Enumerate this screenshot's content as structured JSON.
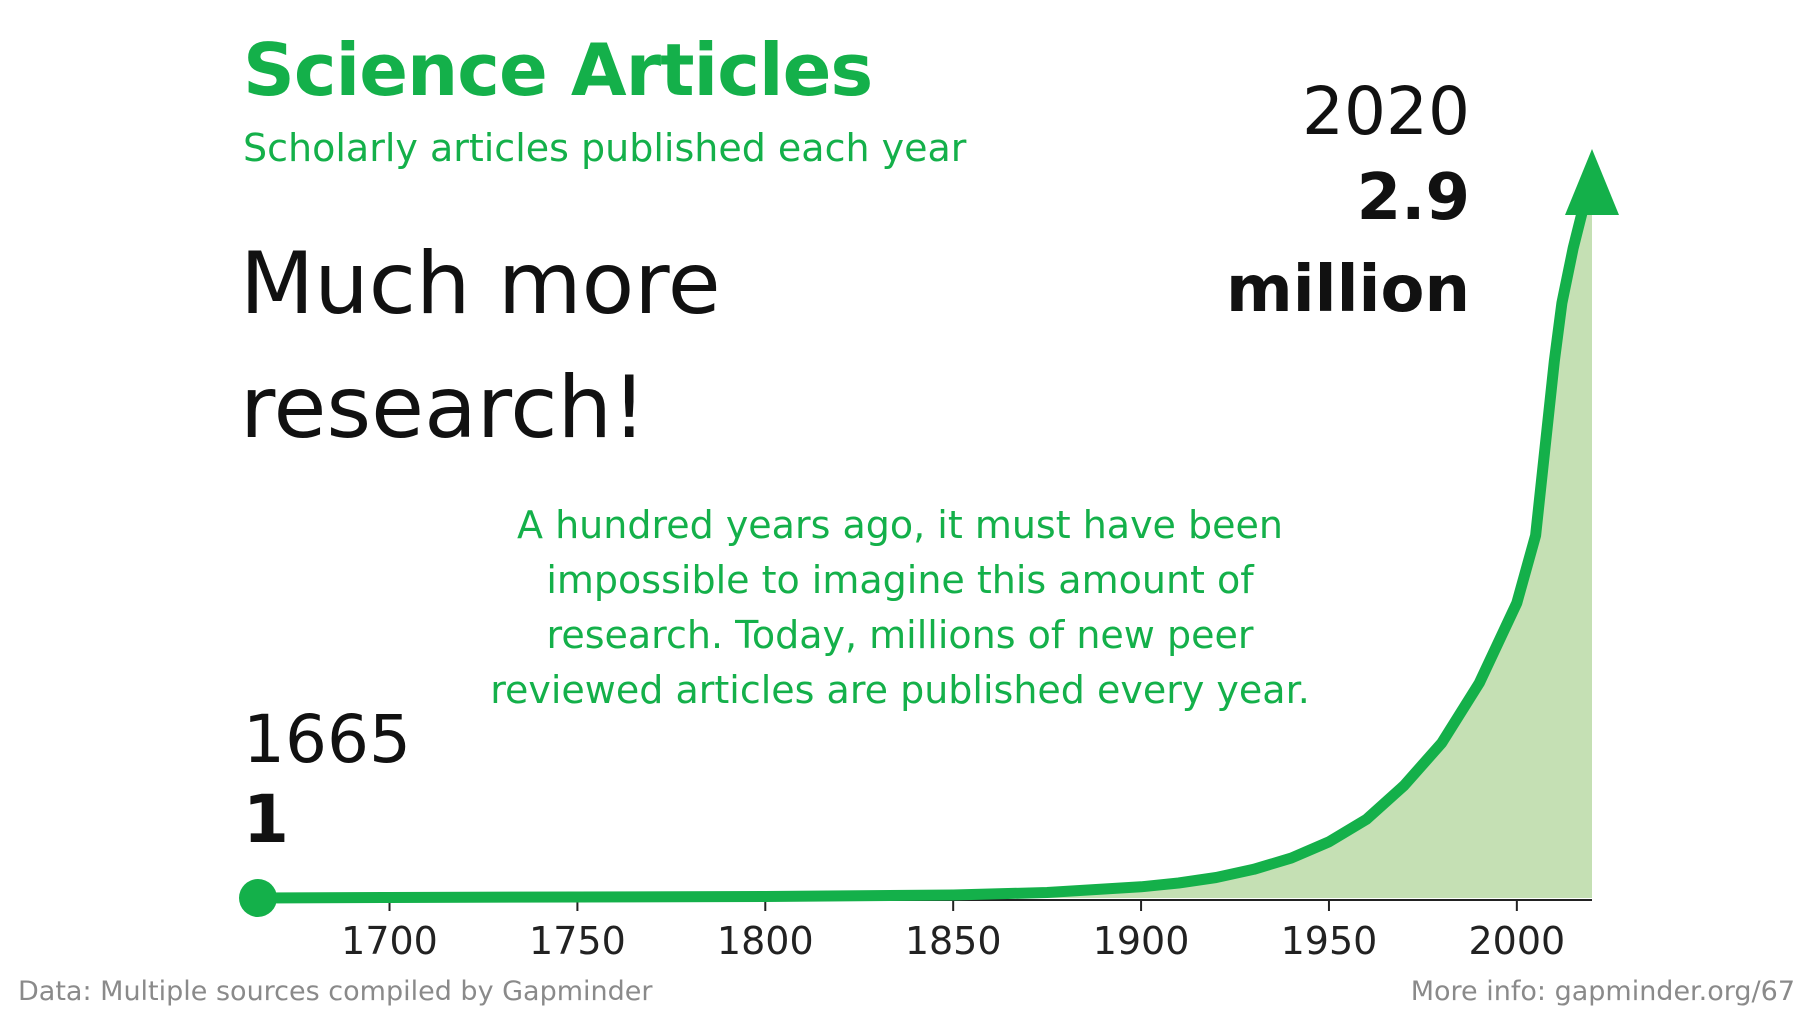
{
  "title": "Science Articles",
  "subtitle": "Scholarly articles published each year",
  "headline": "Much more research!",
  "annotation": "A hundred years ago, it must have been impossible to imagine this amount of research. Today, millions of new peer reviewed articles are published every year.",
  "end_label": {
    "year": "2020",
    "value": "2.9 million"
  },
  "start_label": {
    "year": "1665",
    "value": "1"
  },
  "footer": {
    "source": "Data: Multiple sources compiled by Gapminder",
    "more_info": "More info: gapminder.org/67"
  },
  "colors": {
    "accent": "#14b04a",
    "area_fill": "#c5e0b4",
    "text": "#111111",
    "muted": "#8a8a8a"
  },
  "chart_data": {
    "type": "area",
    "xlim": [
      1665,
      2020
    ],
    "ylim": [
      0,
      3000000
    ],
    "xticks": [
      1700,
      1750,
      1800,
      1850,
      1900,
      1950,
      2000
    ],
    "grid": false,
    "start_marker": "dot",
    "end_marker": "arrow",
    "series": [
      {
        "x": [
          1665,
          1700,
          1750,
          1800,
          1850,
          1875,
          1900,
          1910,
          1920,
          1930,
          1940,
          1950,
          1960,
          1970,
          1980,
          1990,
          2000,
          2005,
          2010,
          2012,
          2015,
          2020
        ],
        "y": [
          1,
          2000,
          4000,
          6000,
          12000,
          22000,
          45000,
          60000,
          82000,
          115000,
          160000,
          225000,
          315000,
          450000,
          620000,
          860000,
          1180000,
          1450000,
          2150000,
          2380000,
          2600000,
          2900000
        ]
      }
    ]
  }
}
